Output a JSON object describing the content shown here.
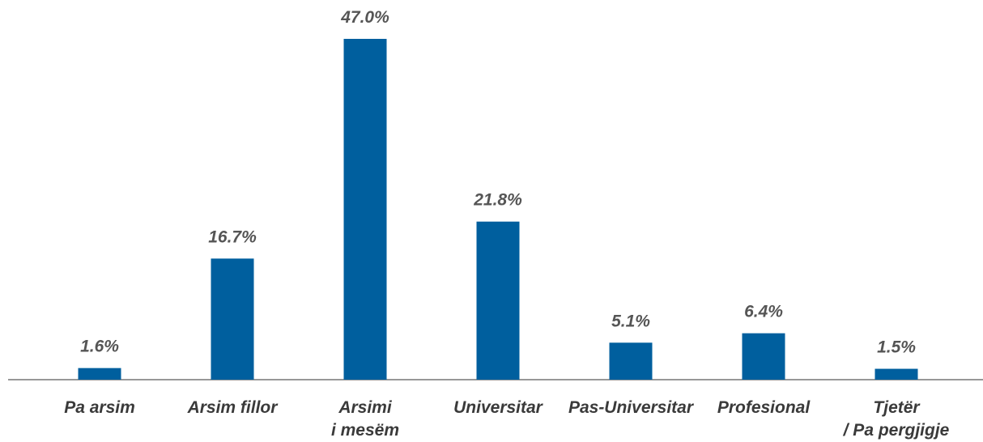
{
  "chart_data": {
    "type": "bar",
    "categories": [
      "Pa arsim",
      "Arsim fillor",
      "Arsimi\ni mesëm",
      "Universitar",
      "Pas-Universitar",
      "Profesional",
      "Tjetër\n/ Pa pergjigje"
    ],
    "values": [
      1.6,
      16.7,
      47.0,
      21.8,
      5.1,
      6.4,
      1.5
    ],
    "value_labels": [
      "1.6%",
      "16.7%",
      "47.0%",
      "21.8%",
      "5.1%",
      "6.4%",
      "1.5%"
    ],
    "color": "#005f9e"
  }
}
